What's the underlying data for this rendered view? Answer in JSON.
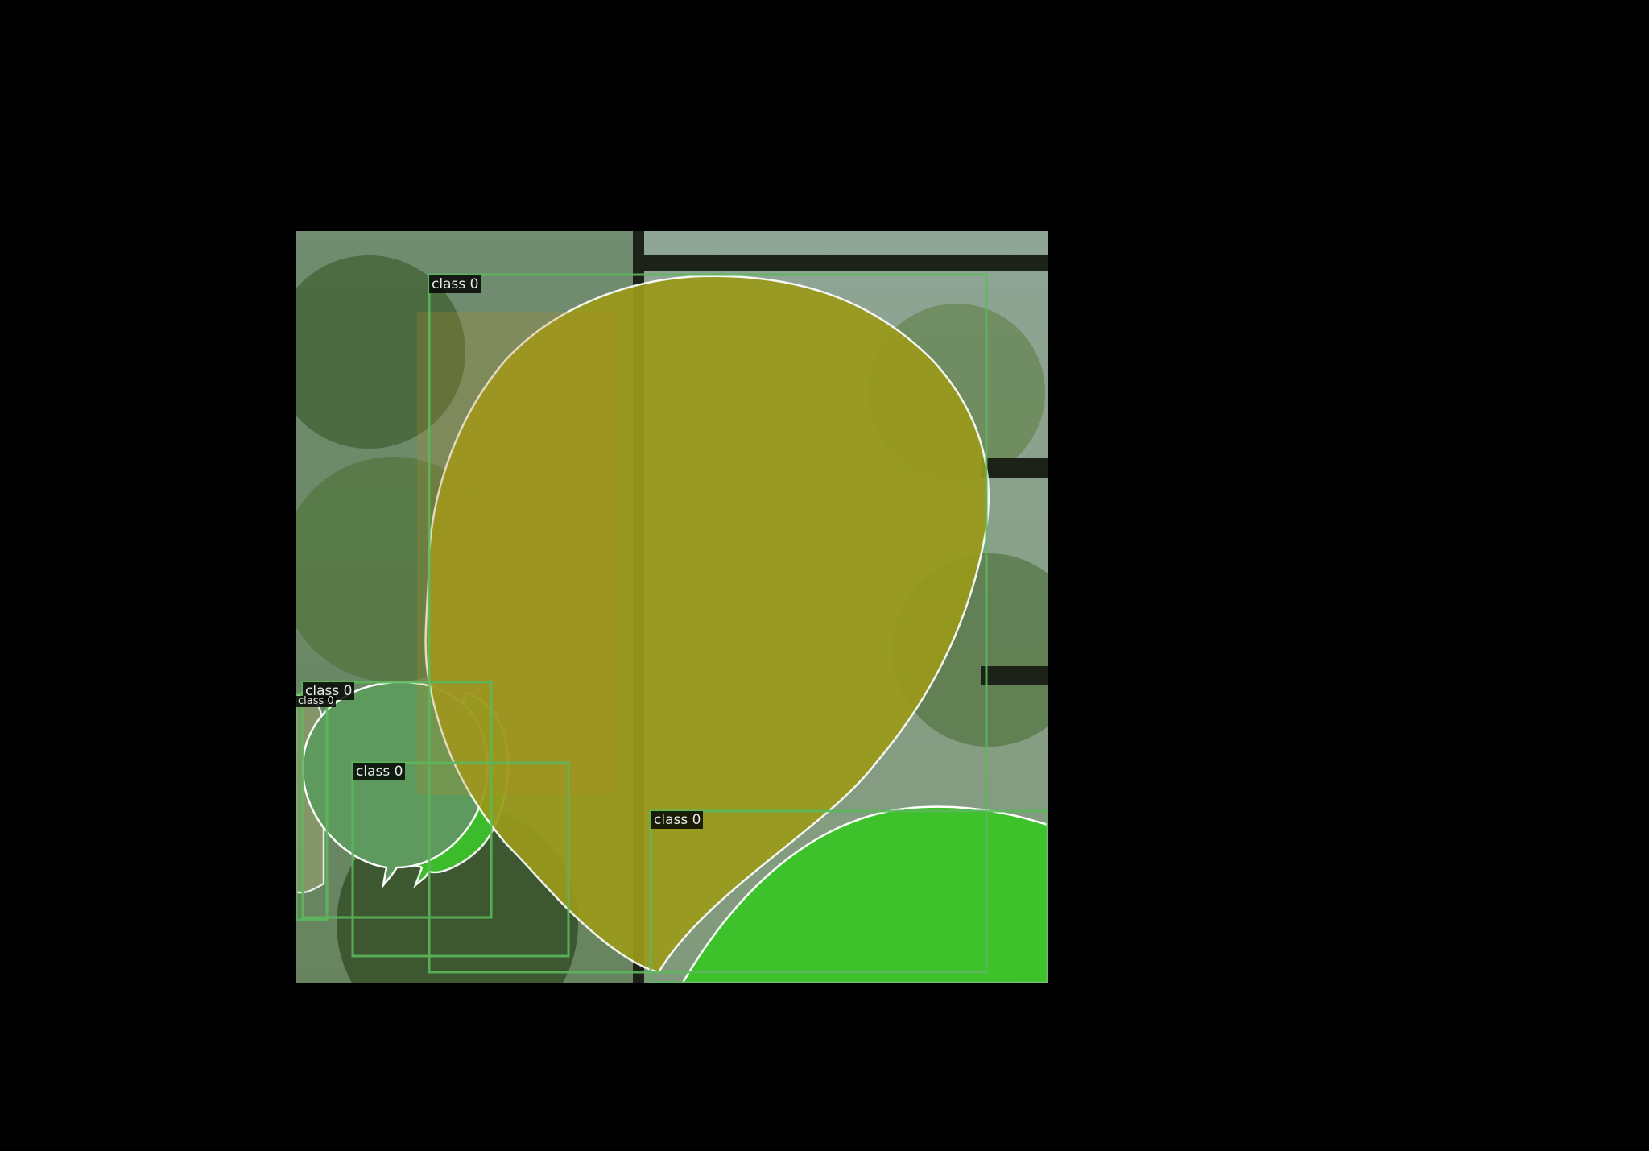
{
  "figure": {
    "background": "#000000",
    "mask_outline_color": "#ffffff",
    "box_color": "#5cb85c"
  },
  "detections": [
    {
      "label": "class 0",
      "mask_color": "#9a9a1a"
    },
    {
      "label": "class 0",
      "mask_color": "#3dc22b"
    },
    {
      "label": "class 0",
      "mask_color": "#5e9a5e"
    },
    {
      "label": "class 0",
      "mask_color": "#3dc22b"
    },
    {
      "label": "class 0",
      "mask_color": "#8a9a6a"
    }
  ]
}
